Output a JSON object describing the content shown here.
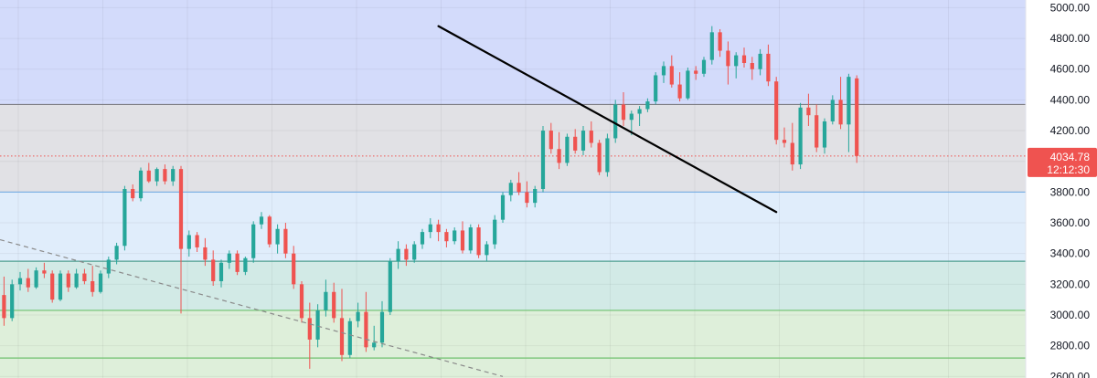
{
  "chart_data": {
    "type": "candlestick",
    "ylim": [
      2590,
      5050
    ],
    "xlim": [
      -0.5,
      127
    ],
    "y_ticks": [
      "5000.00",
      "4800.00",
      "4600.00",
      "4400.00",
      "4200.00",
      "4000.00",
      "3800.00",
      "3600.00",
      "3400.00",
      "3200.00",
      "3000.00",
      "2800.00",
      "2600.00"
    ],
    "y_tick_values": [
      5000,
      4800,
      4600,
      4400,
      4200,
      4000,
      3800,
      3600,
      3400,
      3200,
      3000,
      2800,
      2600
    ],
    "grid": true,
    "zones": [
      {
        "from": 4370,
        "to": 5050,
        "color": "#d3dbfb"
      },
      {
        "from": 3800,
        "to": 4370,
        "color": "#e1e1e5"
      },
      {
        "from": 3350,
        "to": 3800,
        "color": "#e0edfb"
      },
      {
        "from": 3030,
        "to": 3350,
        "color": "#d2eae6"
      },
      {
        "from": 2590,
        "to": 3030,
        "color": "#deefda"
      }
    ],
    "levels": [
      {
        "value": 4370,
        "color": "#7e7e84"
      },
      {
        "value": 3800,
        "color": "#7fb2e5"
      },
      {
        "value": 3350,
        "color": "#4c9e8f"
      },
      {
        "value": 3030,
        "color": "#6fc16d"
      },
      {
        "value": 2720,
        "color": "#6fc16d"
      }
    ],
    "trendline": {
      "start": [
        54,
        4880
      ],
      "end": [
        96,
        3670
      ],
      "color": "#000000"
    },
    "dashed_line": {
      "start": [
        -0.5,
        3490
      ],
      "end": [
        62,
        2600
      ],
      "color": "#8a8a8a"
    },
    "current_price": {
      "value": 4034.78,
      "label": "4034.78",
      "countdown": "12:12:30",
      "color": "#ef5350"
    },
    "up_color": "#26a69a",
    "down_color": "#ef5350",
    "candles": [
      [
        3130,
        3250,
        2930,
        2980
      ],
      [
        2980,
        3230,
        2960,
        3200
      ],
      [
        3200,
        3280,
        3160,
        3240
      ],
      [
        3240,
        3300,
        3150,
        3180
      ],
      [
        3180,
        3310,
        3170,
        3290
      ],
      [
        3290,
        3340,
        3240,
        3270
      ],
      [
        3270,
        3290,
        3080,
        3100
      ],
      [
        3100,
        3290,
        3090,
        3270
      ],
      [
        3270,
        3290,
        3150,
        3180
      ],
      [
        3180,
        3300,
        3170,
        3270
      ],
      [
        3270,
        3300,
        3200,
        3220
      ],
      [
        3220,
        3320,
        3120,
        3150
      ],
      [
        3150,
        3290,
        3140,
        3270
      ],
      [
        3270,
        3380,
        3240,
        3360
      ],
      [
        3360,
        3470,
        3330,
        3450
      ],
      [
        3450,
        3840,
        3420,
        3820
      ],
      [
        3820,
        3850,
        3740,
        3760
      ],
      [
        3760,
        3960,
        3740,
        3940
      ],
      [
        3940,
        3990,
        3860,
        3870
      ],
      [
        3870,
        3960,
        3840,
        3950
      ],
      [
        3950,
        3980,
        3850,
        3870
      ],
      [
        3870,
        3970,
        3840,
        3950
      ],
      [
        3950,
        3970,
        3010,
        3430
      ],
      [
        3430,
        3550,
        3380,
        3520
      ],
      [
        3520,
        3540,
        3410,
        3440
      ],
      [
        3440,
        3500,
        3320,
        3360
      ],
      [
        3360,
        3420,
        3190,
        3220
      ],
      [
        3220,
        3360,
        3180,
        3340
      ],
      [
        3340,
        3420,
        3300,
        3400
      ],
      [
        3400,
        3420,
        3260,
        3280
      ],
      [
        3280,
        3380,
        3260,
        3370
      ],
      [
        3370,
        3610,
        3340,
        3590
      ],
      [
        3590,
        3670,
        3560,
        3640
      ],
      [
        3640,
        3650,
        3440,
        3460
      ],
      [
        3460,
        3590,
        3400,
        3560
      ],
      [
        3560,
        3600,
        3370,
        3400
      ],
      [
        3400,
        3450,
        3170,
        3200
      ],
      [
        3200,
        3220,
        2950,
        2980
      ],
      [
        2980,
        3080,
        2650,
        2840
      ],
      [
        2840,
        3070,
        2790,
        3030
      ],
      [
        3030,
        3230,
        2990,
        3150
      ],
      [
        3150,
        3210,
        2950,
        2980
      ],
      [
        2980,
        3170,
        2700,
        2740
      ],
      [
        2740,
        2980,
        2720,
        2960
      ],
      [
        2960,
        3080,
        2920,
        3020
      ],
      [
        3020,
        3150,
        2760,
        2790
      ],
      [
        2790,
        2930,
        2770,
        2820
      ],
      [
        2820,
        3090,
        2790,
        3020
      ],
      [
        3020,
        3370,
        3000,
        3350
      ],
      [
        3350,
        3480,
        3300,
        3430
      ],
      [
        3430,
        3460,
        3320,
        3360
      ],
      [
        3360,
        3480,
        3340,
        3460
      ],
      [
        3460,
        3560,
        3430,
        3540
      ],
      [
        3540,
        3630,
        3500,
        3590
      ],
      [
        3590,
        3620,
        3480,
        3540
      ],
      [
        3540,
        3560,
        3440,
        3480
      ],
      [
        3480,
        3570,
        3460,
        3550
      ],
      [
        3550,
        3610,
        3400,
        3420
      ],
      [
        3420,
        3590,
        3400,
        3570
      ],
      [
        3570,
        3590,
        3370,
        3390
      ],
      [
        3390,
        3480,
        3350,
        3460
      ],
      [
        3460,
        3650,
        3430,
        3620
      ],
      [
        3620,
        3800,
        3600,
        3780
      ],
      [
        3780,
        3880,
        3740,
        3860
      ],
      [
        3860,
        3930,
        3780,
        3800
      ],
      [
        3800,
        3870,
        3700,
        3730
      ],
      [
        3730,
        3840,
        3700,
        3820
      ],
      [
        3820,
        4230,
        3800,
        4200
      ],
      [
        4200,
        4250,
        4050,
        4080
      ],
      [
        4080,
        4190,
        3950,
        3990
      ],
      [
        3990,
        4180,
        3970,
        4160
      ],
      [
        4160,
        4210,
        4050,
        4070
      ],
      [
        4070,
        4230,
        4040,
        4200
      ],
      [
        4200,
        4260,
        4090,
        4120
      ],
      [
        4120,
        4140,
        3910,
        3930
      ],
      [
        3930,
        4180,
        3900,
        4150
      ],
      [
        4150,
        4400,
        4120,
        4370
      ],
      [
        4370,
        4450,
        4230,
        4270
      ],
      [
        4270,
        4330,
        4170,
        4310
      ],
      [
        4310,
        4360,
        4230,
        4340
      ],
      [
        4340,
        4410,
        4320,
        4390
      ],
      [
        4390,
        4580,
        4370,
        4560
      ],
      [
        4560,
        4650,
        4510,
        4620
      ],
      [
        4620,
        4690,
        4480,
        4500
      ],
      [
        4500,
        4580,
        4390,
        4410
      ],
      [
        4410,
        4610,
        4400,
        4590
      ],
      [
        4590,
        4620,
        4530,
        4570
      ],
      [
        4570,
        4680,
        4550,
        4660
      ],
      [
        4660,
        4880,
        4630,
        4840
      ],
      [
        4840,
        4860,
        4680,
        4720
      ],
      [
        4720,
        4780,
        4500,
        4620
      ],
      [
        4620,
        4710,
        4540,
        4690
      ],
      [
        4690,
        4740,
        4610,
        4640
      ],
      [
        4640,
        4680,
        4530,
        4600
      ],
      [
        4600,
        4730,
        4560,
        4700
      ],
      [
        4700,
        4760,
        4490,
        4520
      ],
      [
        4520,
        4550,
        4110,
        4140
      ],
      [
        4140,
        4220,
        4090,
        4120
      ],
      [
        4120,
        4250,
        3940,
        3980
      ],
      [
        3980,
        4380,
        3950,
        4350
      ],
      [
        4350,
        4440,
        4230,
        4300
      ],
      [
        4300,
        4370,
        4060,
        4090
      ],
      [
        4090,
        4280,
        4050,
        4260
      ],
      [
        4260,
        4430,
        4240,
        4400
      ],
      [
        4400,
        4550,
        4210,
        4240
      ],
      [
        4240,
        4570,
        4060,
        4550
      ],
      [
        4540,
        4560,
        3990,
        4035
      ]
    ]
  }
}
